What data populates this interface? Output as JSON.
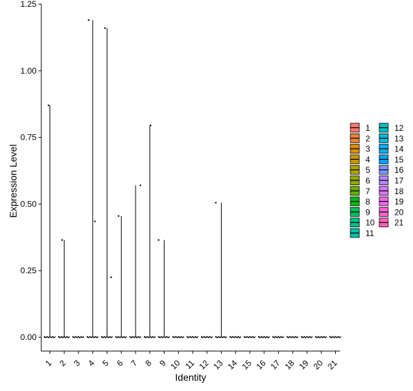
{
  "chart_data": {
    "type": "violin",
    "xlabel": "Identity",
    "ylabel": "Expression Level",
    "ylim": [
      0,
      1.25
    ],
    "yticks": [
      "0.00",
      "0.25",
      "0.50",
      "0.75",
      "1.00",
      "1.25"
    ],
    "ytick_values": [
      0,
      0.25,
      0.5,
      0.75,
      1.0,
      1.25
    ],
    "categories": [
      "1",
      "2",
      "3",
      "4",
      "5",
      "6",
      "7",
      "8",
      "9",
      "10",
      "11",
      "12",
      "13",
      "14",
      "15",
      "16",
      "17",
      "18",
      "19",
      "20",
      "21"
    ],
    "max_values": [
      0.87,
      0.365,
      0.0,
      1.19,
      1.16,
      0.455,
      0.57,
      0.795,
      0.365,
      0.0,
      0.0,
      0.0,
      0.505,
      0.0,
      0.0,
      0.0,
      0.0,
      0.0,
      0.0,
      0.0,
      0.0
    ],
    "points": [
      {
        "category": "1",
        "value": 0.87
      },
      {
        "category": "2",
        "value": 0.365
      },
      {
        "category": "4",
        "value": 1.19
      },
      {
        "category": "4",
        "value": 0.435
      },
      {
        "category": "5",
        "value": 1.16
      },
      {
        "category": "5",
        "value": 0.225
      },
      {
        "category": "6",
        "value": 0.455
      },
      {
        "category": "7",
        "value": 0.57
      },
      {
        "category": "8",
        "value": 0.795
      },
      {
        "category": "9",
        "value": 0.365
      },
      {
        "category": "13",
        "value": 0.505
      }
    ],
    "legend": {
      "placement": "right",
      "entries": [
        {
          "label": "1",
          "color": "#F8766D"
        },
        {
          "label": "2",
          "color": "#EC8239"
        },
        {
          "label": "3",
          "color": "#DB8E00"
        },
        {
          "label": "4",
          "color": "#C79800"
        },
        {
          "label": "5",
          "color": "#AEA200"
        },
        {
          "label": "6",
          "color": "#8FAA00"
        },
        {
          "label": "7",
          "color": "#64B200"
        },
        {
          "label": "8",
          "color": "#00B81B"
        },
        {
          "label": "9",
          "color": "#00BD5C"
        },
        {
          "label": "10",
          "color": "#00C085"
        },
        {
          "label": "11",
          "color": "#00C1A7"
        },
        {
          "label": "12",
          "color": "#00BFC4"
        },
        {
          "label": "13",
          "color": "#00BADE"
        },
        {
          "label": "14",
          "color": "#00B2F3"
        },
        {
          "label": "15",
          "color": "#00A6FF"
        },
        {
          "label": "16",
          "color": "#7C96FF"
        },
        {
          "label": "17",
          "color": "#B385FF"
        },
        {
          "label": "18",
          "color": "#D874FD"
        },
        {
          "label": "19",
          "color": "#EF67EB"
        },
        {
          "label": "20",
          "color": "#FD61D3"
        },
        {
          "label": "21",
          "color": "#FF63B6"
        }
      ]
    },
    "grid": false
  }
}
